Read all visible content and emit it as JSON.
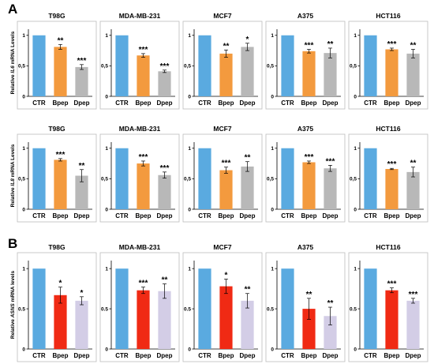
{
  "panel_labels": [
    "A",
    "B"
  ],
  "chart_data": [
    {
      "type": "bar",
      "row": 0,
      "title": "T98G",
      "ylabel_pre": "Relative ",
      "ylabel_gene": "IL6",
      "ylabel_post": " mRNA Levels",
      "categories": [
        "CTR",
        "Bpep",
        "Dpep"
      ],
      "colors": [
        "#5aaae0",
        "#f39a3e",
        "#b8b8b8"
      ],
      "values": [
        1.0,
        0.81,
        0.48
      ],
      "errors": [
        0,
        0.04,
        0.04
      ],
      "stars": [
        "",
        "**",
        "***"
      ],
      "ylim": [
        0,
        1.1
      ],
      "yticks": [
        0,
        0.5,
        1
      ],
      "ytick_labels": [
        "0",
        "0,5",
        "1"
      ]
    },
    {
      "type": "bar",
      "row": 0,
      "title": "MDA-MB-231",
      "categories": [
        "CTR",
        "Bpep",
        "Dpep"
      ],
      "colors": [
        "#5aaae0",
        "#f39a3e",
        "#b8b8b8"
      ],
      "values": [
        1.0,
        0.67,
        0.41
      ],
      "errors": [
        0,
        0.03,
        0.02
      ],
      "stars": [
        "",
        "***",
        "***"
      ],
      "ylim": [
        0,
        1.1
      ],
      "yticks": [
        0,
        0.5,
        1
      ],
      "ytick_labels": [
        "0",
        "0,5",
        "1"
      ]
    },
    {
      "type": "bar",
      "row": 0,
      "title": "MCF7",
      "categories": [
        "CTR",
        "Bpep",
        "Dpep"
      ],
      "colors": [
        "#5aaae0",
        "#f39a3e",
        "#b8b8b8"
      ],
      "values": [
        1.0,
        0.7,
        0.81
      ],
      "errors": [
        0,
        0.06,
        0.06
      ],
      "stars": [
        "",
        "**",
        "*"
      ],
      "ylim": [
        0,
        1.1
      ],
      "yticks": [
        0,
        0.5,
        1
      ],
      "ytick_labels": [
        "0",
        "0,5",
        "1"
      ]
    },
    {
      "type": "bar",
      "row": 0,
      "title": "A375",
      "categories": [
        "CTR",
        "Bpep",
        "Dpep"
      ],
      "colors": [
        "#5aaae0",
        "#f39a3e",
        "#b8b8b8"
      ],
      "values": [
        1.0,
        0.74,
        0.71
      ],
      "errors": [
        0,
        0.03,
        0.08
      ],
      "stars": [
        "",
        "***",
        "**"
      ],
      "ylim": [
        0,
        1.1
      ],
      "yticks": [
        0,
        0.5,
        1
      ],
      "ytick_labels": [
        "0",
        "0,5",
        "1"
      ]
    },
    {
      "type": "bar",
      "row": 0,
      "title": "HCT116",
      "categories": [
        "CTR",
        "Bpep",
        "Dpep"
      ],
      "colors": [
        "#5aaae0",
        "#f39a3e",
        "#b8b8b8"
      ],
      "values": [
        1.0,
        0.77,
        0.7
      ],
      "errors": [
        0,
        0.02,
        0.07
      ],
      "stars": [
        "",
        "***",
        "**"
      ],
      "ylim": [
        0,
        1.1
      ],
      "yticks": [
        0,
        0.5,
        1
      ],
      "ytick_labels": [
        "0",
        "0,5",
        "1"
      ]
    },
    {
      "type": "bar",
      "row": 1,
      "title": "T98G",
      "ylabel_pre": "Relative ",
      "ylabel_gene": "IL8",
      "ylabel_post": " mRNA Levels",
      "categories": [
        "CTR",
        "Bpep",
        "Dpep"
      ],
      "colors": [
        "#5aaae0",
        "#f39a3e",
        "#b8b8b8"
      ],
      "values": [
        1.0,
        0.81,
        0.55
      ],
      "errors": [
        0,
        0.02,
        0.1
      ],
      "stars": [
        "",
        "***",
        "**"
      ],
      "ylim": [
        0,
        1.1
      ],
      "yticks": [
        0,
        0.5,
        1
      ],
      "ytick_labels": [
        "0",
        "0,5",
        "1"
      ]
    },
    {
      "type": "bar",
      "row": 1,
      "title": "MDA-MB-231",
      "categories": [
        "CTR",
        "Bpep",
        "Dpep"
      ],
      "colors": [
        "#5aaae0",
        "#f39a3e",
        "#b8b8b8"
      ],
      "values": [
        1.0,
        0.75,
        0.56
      ],
      "errors": [
        0,
        0.04,
        0.05
      ],
      "stars": [
        "",
        "***",
        "***"
      ],
      "ylim": [
        0,
        1.1
      ],
      "yticks": [
        0,
        0.5,
        1
      ],
      "ytick_labels": [
        "0",
        "0,5",
        "1"
      ]
    },
    {
      "type": "bar",
      "row": 1,
      "title": "MCF7",
      "categories": [
        "CTR",
        "Bpep",
        "Dpep"
      ],
      "colors": [
        "#5aaae0",
        "#f39a3e",
        "#b8b8b8"
      ],
      "values": [
        1.0,
        0.64,
        0.7
      ],
      "errors": [
        0,
        0.05,
        0.08
      ],
      "stars": [
        "",
        "***",
        "**"
      ],
      "ylim": [
        0,
        1.1
      ],
      "yticks": [
        0,
        0.5,
        1
      ],
      "ytick_labels": [
        "0",
        "0,5",
        "1"
      ]
    },
    {
      "type": "bar",
      "row": 1,
      "title": "A375",
      "categories": [
        "CTR",
        "Bpep",
        "Dpep"
      ],
      "colors": [
        "#5aaae0",
        "#f39a3e",
        "#b8b8b8"
      ],
      "values": [
        1.0,
        0.77,
        0.67
      ],
      "errors": [
        0,
        0.02,
        0.05
      ],
      "stars": [
        "",
        "***",
        "***"
      ],
      "ylim": [
        0,
        1.1
      ],
      "yticks": [
        0,
        0.5,
        1
      ],
      "ytick_labels": [
        "0",
        "0,5",
        "1"
      ]
    },
    {
      "type": "bar",
      "row": 1,
      "title": "HCT116",
      "categories": [
        "CTR",
        "Bpep",
        "Dpep"
      ],
      "colors": [
        "#5aaae0",
        "#f39a3e",
        "#b8b8b8"
      ],
      "values": [
        1.0,
        0.66,
        0.61
      ],
      "errors": [
        0,
        0.01,
        0.08
      ],
      "stars": [
        "",
        "***",
        "**"
      ],
      "ylim": [
        0,
        1.1
      ],
      "yticks": [
        0,
        0.5,
        1
      ],
      "ytick_labels": [
        "0",
        "0,5",
        "1"
      ]
    },
    {
      "type": "bar",
      "row": 2,
      "title": "T98G",
      "ylabel_pre": "Relative ",
      "ylabel_gene": "ASNS",
      "ylabel_post": " mRNA levels",
      "categories": [
        "CTR",
        "Bpep",
        "Dpep"
      ],
      "colors": [
        "#5aaae0",
        "#f02a14",
        "#d3cde6"
      ],
      "values": [
        1.0,
        0.67,
        0.6
      ],
      "errors": [
        0,
        0.1,
        0.05
      ],
      "stars": [
        "",
        "*",
        "*"
      ],
      "ylim": [
        0,
        1.1
      ],
      "yticks": [
        0,
        0.5,
        1
      ],
      "ytick_labels": [
        "0",
        "0.5",
        "1"
      ]
    },
    {
      "type": "bar",
      "row": 2,
      "title": "MDA-MB-231",
      "categories": [
        "CTR",
        "Bpep",
        "Dpep"
      ],
      "colors": [
        "#5aaae0",
        "#f02a14",
        "#d3cde6"
      ],
      "values": [
        1.0,
        0.73,
        0.72
      ],
      "errors": [
        0,
        0.04,
        0.09
      ],
      "stars": [
        "",
        "***",
        "**"
      ],
      "ylim": [
        0,
        1.1
      ],
      "yticks": [
        0,
        0.5,
        1
      ],
      "ytick_labels": [
        "0",
        "0.5",
        "1"
      ]
    },
    {
      "type": "bar",
      "row": 2,
      "title": "MCF7",
      "categories": [
        "CTR",
        "Bpep",
        "Dpep"
      ],
      "colors": [
        "#5aaae0",
        "#f02a14",
        "#d3cde6"
      ],
      "values": [
        1.0,
        0.78,
        0.6
      ],
      "errors": [
        0,
        0.09,
        0.09
      ],
      "stars": [
        "",
        "*",
        "**"
      ],
      "ylim": [
        0,
        1.1
      ],
      "yticks": [
        0,
        0.5,
        1
      ],
      "ytick_labels": [
        "0",
        "0.5",
        "1"
      ]
    },
    {
      "type": "bar",
      "row": 2,
      "title": "A375",
      "categories": [
        "CTR",
        "Bpep",
        "Dpep"
      ],
      "colors": [
        "#5aaae0",
        "#f02a14",
        "#d3cde6"
      ],
      "values": [
        1.0,
        0.5,
        0.41
      ],
      "errors": [
        0,
        0.13,
        0.11
      ],
      "stars": [
        "",
        "**",
        "**"
      ],
      "ylim": [
        0,
        1.1
      ],
      "yticks": [
        0,
        0.5,
        1
      ],
      "ytick_labels": [
        "0",
        "0.5",
        "1"
      ]
    },
    {
      "type": "bar",
      "row": 2,
      "title": "HCT116",
      "categories": [
        "CTR",
        "Bpep",
        "Dpep"
      ],
      "colors": [
        "#5aaae0",
        "#f02a14",
        "#d3cde6"
      ],
      "values": [
        1.0,
        0.73,
        0.6
      ],
      "errors": [
        0,
        0.03,
        0.03
      ],
      "stars": [
        "",
        "***",
        "***"
      ],
      "ylim": [
        0,
        1.1
      ],
      "yticks": [
        0,
        0.5,
        1
      ],
      "ytick_labels": [
        "0",
        "0.5",
        "1"
      ]
    }
  ]
}
